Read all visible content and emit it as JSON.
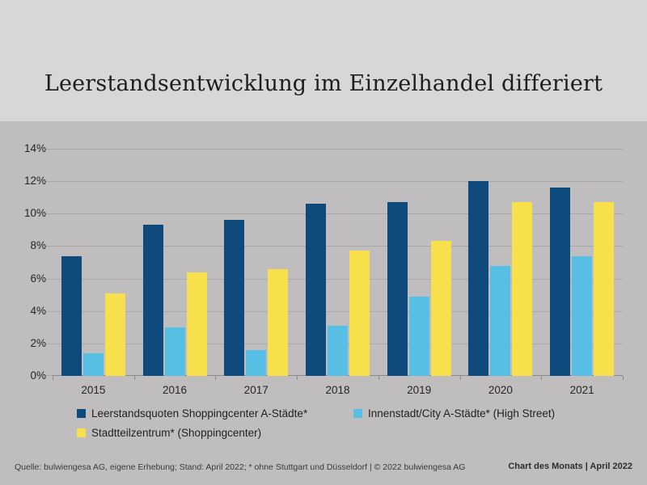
{
  "chart_data": {
    "type": "bar",
    "title": "Leerstandsentwicklung im Einzelhandel differiert",
    "categories": [
      "2015",
      "2016",
      "2017",
      "2018",
      "2019",
      "2020",
      "2021"
    ],
    "series": [
      {
        "name": "Leerstandsquoten Shoppingcenter A-Städte*",
        "color": "#0e4b7c",
        "values": [
          7.4,
          9.3,
          9.6,
          10.6,
          10.7,
          12.0,
          11.6
        ]
      },
      {
        "name": "Innenstadt/City A-Städte* (High Street)",
        "color": "#57bee4",
        "values": [
          1.4,
          3.0,
          1.6,
          3.1,
          4.9,
          6.8,
          7.4
        ]
      },
      {
        "name": "Stadtteilzentrum* (Shoppingcenter)",
        "color": "#f8e04d",
        "values": [
          5.1,
          6.4,
          6.6,
          7.7,
          8.3,
          10.7,
          10.7
        ]
      }
    ],
    "ylabel": "",
    "xlabel": "",
    "ylim": [
      0,
      14
    ],
    "y_ticks": [
      0,
      2,
      4,
      6,
      8,
      10,
      12,
      14
    ],
    "y_tick_labels": [
      "0%",
      "2%",
      "4%",
      "6%",
      "8%",
      "10%",
      "12%",
      "14%"
    ],
    "grid": true,
    "legend_position": "bottom"
  },
  "footer": {
    "source": "Quelle: bulwiengesa AG, eigene Erhebung; Stand: April 2022; * ohne Stuttgart und Düsseldorf | © 2022 bulwiengesa AG",
    "badge": "Chart des Monats | April 2022"
  }
}
